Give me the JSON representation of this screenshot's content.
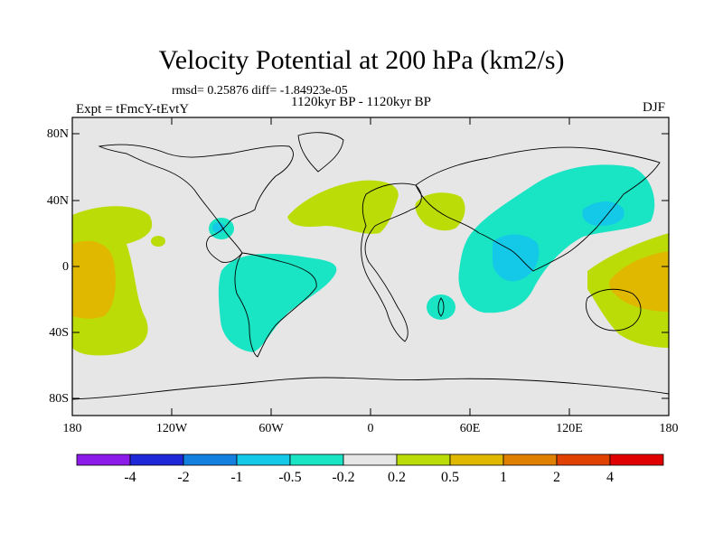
{
  "title": "Velocity Potential at 200 hPa (km2/s)",
  "stats": "rmsd= 0.25876 diff= -1.84923e-05",
  "period": "1120kyr BP - 1120kyr BP",
  "expt": "Expt = tFmcY-tEvtY",
  "season": "DJF",
  "lat_labels": [
    "80N",
    "40N",
    "0",
    "40S",
    "80S"
  ],
  "lon_labels": [
    "180",
    "120W",
    "60W",
    "0",
    "60E",
    "120E",
    "180"
  ],
  "colorbar": {
    "colors": [
      "#8c1bea",
      "#1e28d8",
      "#1380e0",
      "#14c8e8",
      "#19e4c4",
      "#e6e6e6",
      "#bcdc08",
      "#e0b800",
      "#e08000",
      "#e04000",
      "#e00000"
    ],
    "labels": [
      "-4",
      "-2",
      "-1",
      "-0.5",
      "-0.2",
      "0.2",
      "0.5",
      "1",
      "2",
      "4"
    ]
  },
  "colors": {
    "background": "#e6e6e6",
    "positive_weak": "#bcdc08",
    "positive_mid": "#e0b800",
    "positive_strong": "#e08000",
    "negative_weak": "#19e4c4",
    "negative_mid": "#14c8e8"
  }
}
